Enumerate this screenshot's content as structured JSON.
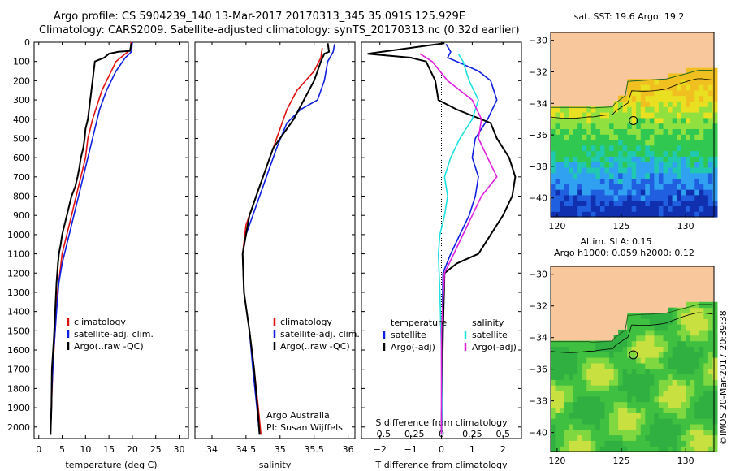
{
  "header": {
    "line1": "Argo profile: CS 5904239_140 13-Mar-2017 20170313_345 35.091S 125.929E",
    "line2": "Climatology: CARS2009. Satellite-adjusted climatology: synTS_20170313.nc (0.32d earlier)"
  },
  "stamp": "©IMOS 20-Mar-2017 20:39:38",
  "colors": {
    "climatology": "#e01010",
    "satellite": "#1020e0",
    "argo": "#000000",
    "sat_sal": "#20e0e0",
    "argo_sal": "#e020e0",
    "land": "#f8c89c"
  },
  "chart_data": [
    {
      "type": "line",
      "xlabel": "temperature (deg C)",
      "ylabel": "",
      "xlim": [
        -1,
        32
      ],
      "ylim": [
        2060,
        0
      ],
      "xticks": [
        0,
        5,
        10,
        15,
        20,
        25,
        30
      ],
      "yticks": [
        0,
        100,
        200,
        300,
        400,
        500,
        600,
        700,
        800,
        900,
        1000,
        1100,
        1200,
        1300,
        1400,
        1500,
        1600,
        1700,
        1800,
        1900,
        2000
      ],
      "legend": [
        "climatology",
        "satellite-adj. clim.",
        "Argo(..raw -QC)"
      ],
      "series": [
        {
          "name": "climatology",
          "color": "#e01010",
          "points": [
            [
              19.7,
              0
            ],
            [
              19.6,
              40
            ],
            [
              18.5,
              60
            ],
            [
              16.5,
              100
            ],
            [
              13.5,
              250
            ],
            [
              11.5,
              400
            ],
            [
              10.5,
              500
            ],
            [
              10,
              600
            ],
            [
              9,
              700
            ],
            [
              8,
              800
            ],
            [
              7,
              900
            ],
            [
              6,
              1000
            ],
            [
              5,
              1100
            ],
            [
              4.5,
              1200
            ],
            [
              4,
              1300
            ],
            [
              3.5,
              1500
            ],
            [
              3,
              1700
            ],
            [
              2.7,
              1900
            ],
            [
              2.5,
              2040
            ]
          ]
        },
        {
          "name": "satellite-adj. clim.",
          "color": "#1020e0",
          "points": [
            [
              20,
              0
            ],
            [
              19.8,
              50
            ],
            [
              18.5,
              80
            ],
            [
              16.5,
              150
            ],
            [
              14.5,
              250
            ],
            [
              13,
              350
            ],
            [
              12,
              450
            ],
            [
              11,
              550
            ],
            [
              10,
              650
            ],
            [
              9,
              750
            ],
            [
              8,
              850
            ],
            [
              7,
              950
            ],
            [
              6,
              1050
            ],
            [
              5,
              1150
            ],
            [
              4.3,
              1250
            ],
            [
              3.8,
              1400
            ],
            [
              3.2,
              1600
            ],
            [
              2.8,
              1800
            ],
            [
              2.5,
              2040
            ]
          ]
        },
        {
          "name": "Argo(..raw -QC)",
          "color": "#000000",
          "points": [
            [
              19.8,
              5
            ],
            [
              19.5,
              45
            ],
            [
              17,
              50
            ],
            [
              15,
              60
            ],
            [
              14,
              80
            ],
            [
              12,
              100
            ],
            [
              11.5,
              200
            ],
            [
              11,
              300
            ],
            [
              10.5,
              400
            ],
            [
              10,
              450
            ],
            [
              9.8,
              500
            ],
            [
              9.5,
              550
            ],
            [
              9,
              600
            ],
            [
              8.7,
              650
            ],
            [
              8.3,
              700
            ],
            [
              7.8,
              750
            ],
            [
              7,
              800
            ],
            [
              6.5,
              850
            ],
            [
              6,
              900
            ],
            [
              5.5,
              950
            ],
            [
              5,
              1000
            ],
            [
              4.7,
              1050
            ],
            [
              4.3,
              1100
            ],
            [
              4.1,
              1150
            ],
            [
              3.8,
              1250
            ],
            [
              3.5,
              1400
            ],
            [
              3.2,
              1550
            ],
            [
              2.8,
              1700
            ],
            [
              2.7,
              1900
            ],
            [
              2.5,
              2040
            ]
          ]
        }
      ]
    },
    {
      "type": "line",
      "xlabel": "salinity",
      "ylabel": "",
      "xlim": [
        33.75,
        36.1
      ],
      "ylim": [
        2060,
        0
      ],
      "xticks": [
        34,
        34.5,
        35,
        35.5,
        36
      ],
      "legend": [
        "climatology",
        "satellite-adj. clim.",
        "Argo(..raw -QC)"
      ],
      "annotation": [
        "Argo Australia",
        "PI: Susan Wijffels"
      ],
      "series": [
        {
          "name": "climatology",
          "color": "#e01010",
          "points": [
            [
              35.62,
              30
            ],
            [
              35.6,
              80
            ],
            [
              35.5,
              150
            ],
            [
              35.25,
              250
            ],
            [
              35.1,
              350
            ],
            [
              34.95,
              500
            ],
            [
              34.8,
              650
            ],
            [
              34.65,
              800
            ],
            [
              34.5,
              950
            ],
            [
              34.45,
              1100
            ],
            [
              34.47,
              1300
            ],
            [
              34.55,
              1500
            ],
            [
              34.62,
              1700
            ],
            [
              34.68,
              1900
            ],
            [
              34.72,
              2040
            ]
          ]
        },
        {
          "name": "satellite-adj. clim.",
          "color": "#1020e0",
          "points": [
            [
              35.8,
              10
            ],
            [
              35.78,
              50
            ],
            [
              35.7,
              100
            ],
            [
              35.65,
              200
            ],
            [
              35.55,
              300
            ],
            [
              35.3,
              350
            ],
            [
              35.1,
              420
            ],
            [
              34.95,
              550
            ],
            [
              34.8,
              700
            ],
            [
              34.65,
              850
            ],
            [
              34.5,
              1000
            ],
            [
              34.45,
              1100
            ],
            [
              34.47,
              1300
            ],
            [
              34.55,
              1500
            ],
            [
              34.6,
              1700
            ],
            [
              34.66,
              1900
            ],
            [
              34.7,
              2040
            ]
          ]
        },
        {
          "name": "Argo(..raw -QC)",
          "color": "#000000",
          "points": [
            [
              35.7,
              5
            ],
            [
              35.72,
              50
            ],
            [
              35.65,
              60
            ],
            [
              35.6,
              100
            ],
            [
              35.5,
              200
            ],
            [
              35.35,
              300
            ],
            [
              35.2,
              400
            ],
            [
              35,
              500
            ],
            [
              34.9,
              550
            ],
            [
              34.85,
              600
            ],
            [
              34.75,
              700
            ],
            [
              34.65,
              800
            ],
            [
              34.6,
              850
            ],
            [
              34.55,
              900
            ],
            [
              34.5,
              1000
            ],
            [
              34.45,
              1100
            ],
            [
              34.47,
              1300
            ],
            [
              34.55,
              1500
            ],
            [
              34.62,
              1700
            ],
            [
              34.67,
              1900
            ],
            [
              34.7,
              2040
            ]
          ]
        }
      ]
    },
    {
      "type": "line",
      "xlabel": "T difference from climatology",
      "xlabel_top": "S difference from climatology",
      "xlim": [
        -2.6,
        2.6
      ],
      "ylim": [
        2060,
        0
      ],
      "xticks": [
        -2,
        -1,
        0,
        1,
        2
      ],
      "xticks_top": [
        "-0.5",
        "-0.25",
        "0",
        "0.25",
        "0.5"
      ],
      "legend_titles": [
        "temperature",
        "salinity"
      ],
      "legend": [
        "satellite",
        "Argo(-adj)",
        "satellite",
        "Argo(-adj)"
      ],
      "series": [
        {
          "name": "satellite",
          "group": "temperature",
          "color": "#1020e0",
          "points": [
            [
              0.15,
              10
            ],
            [
              0.3,
              50
            ],
            [
              0.2,
              80
            ],
            [
              0.5,
              100
            ],
            [
              1.2,
              150
            ],
            [
              1.6,
              200
            ],
            [
              1.8,
              300
            ],
            [
              1.5,
              400
            ],
            [
              1.1,
              500
            ],
            [
              1,
              600
            ],
            [
              1.2,
              700
            ],
            [
              1.1,
              800
            ],
            [
              0.9,
              900
            ],
            [
              0.6,
              1000
            ],
            [
              0.3,
              1100
            ],
            [
              0.05,
              1200
            ],
            [
              0.02,
              1500
            ],
            [
              0,
              2040
            ]
          ]
        },
        {
          "name": "Argo(-adj)",
          "group": "temperature",
          "color": "#000000",
          "points": [
            [
              0.1,
              5
            ],
            [
              -2.4,
              60
            ],
            [
              -1,
              80
            ],
            [
              -0.5,
              100
            ],
            [
              -0.2,
              200
            ],
            [
              -0.1,
              300
            ],
            [
              0.5,
              350
            ],
            [
              1.6,
              420
            ],
            [
              1.8,
              500
            ],
            [
              2,
              550
            ],
            [
              2.2,
              600
            ],
            [
              2.4,
              700
            ],
            [
              2.3,
              800
            ],
            [
              2,
              900
            ],
            [
              1.6,
              1000
            ],
            [
              1.2,
              1100
            ],
            [
              0.5,
              1150
            ],
            [
              0.1,
              1200
            ],
            [
              0.05,
              1500
            ],
            [
              0,
              2040
            ]
          ]
        },
        {
          "name": "satellite",
          "group": "salinity",
          "color": "#20e0e0",
          "points": [
            [
              0.55,
              60
            ],
            [
              0.7,
              100
            ],
            [
              0.9,
              200
            ],
            [
              1.2,
              300
            ],
            [
              1,
              400
            ],
            [
              0.6,
              500
            ],
            [
              0.3,
              600
            ],
            [
              0.1,
              700
            ],
            [
              0.2,
              800
            ],
            [
              0.1,
              900
            ],
            [
              -0.05,
              1000
            ],
            [
              -0.1,
              1100
            ],
            [
              -0.05,
              1300
            ],
            [
              0,
              1600
            ],
            [
              0.02,
              1900
            ],
            [
              0,
              2040
            ]
          ]
        },
        {
          "name": "Argo(-adj)",
          "group": "salinity",
          "color": "#e020e0",
          "points": [
            [
              -0.7,
              60
            ],
            [
              -0.3,
              100
            ],
            [
              0.2,
              200
            ],
            [
              1,
              300
            ],
            [
              1.3,
              400
            ],
            [
              1.2,
              500
            ],
            [
              1.5,
              600
            ],
            [
              1.8,
              700
            ],
            [
              1.3,
              800
            ],
            [
              1,
              900
            ],
            [
              0.7,
              1000
            ],
            [
              0.4,
              1100
            ],
            [
              0.1,
              1200
            ],
            [
              0,
              1500
            ],
            [
              0,
              2040
            ]
          ]
        }
      ]
    }
  ],
  "maps": [
    {
      "title": "sat. SST: 19.6  Argo: 19.2",
      "title2": "",
      "xticks": [
        120,
        125,
        130
      ],
      "yticks": [
        -30,
        -32,
        -34,
        -36,
        -38,
        -40
      ],
      "lon_range": [
        119.5,
        132.2
      ],
      "lat_range": [
        -41.2,
        -29.5
      ],
      "argo_lon": 125.929,
      "argo_lat": -35.091,
      "palette": "sst"
    },
    {
      "title": "Altim. SLA: 0.15",
      "title2": "Argo h1000: 0.059 h2000: 0.12",
      "xticks": [
        120,
        125,
        130
      ],
      "yticks": [
        -30,
        -32,
        -34,
        -36,
        -38,
        -40
      ],
      "lon_range": [
        119.5,
        132.2
      ],
      "lat_range": [
        -41.2,
        -29.5
      ],
      "argo_lon": 125.929,
      "argo_lat": -35.091,
      "palette": "sla"
    }
  ]
}
